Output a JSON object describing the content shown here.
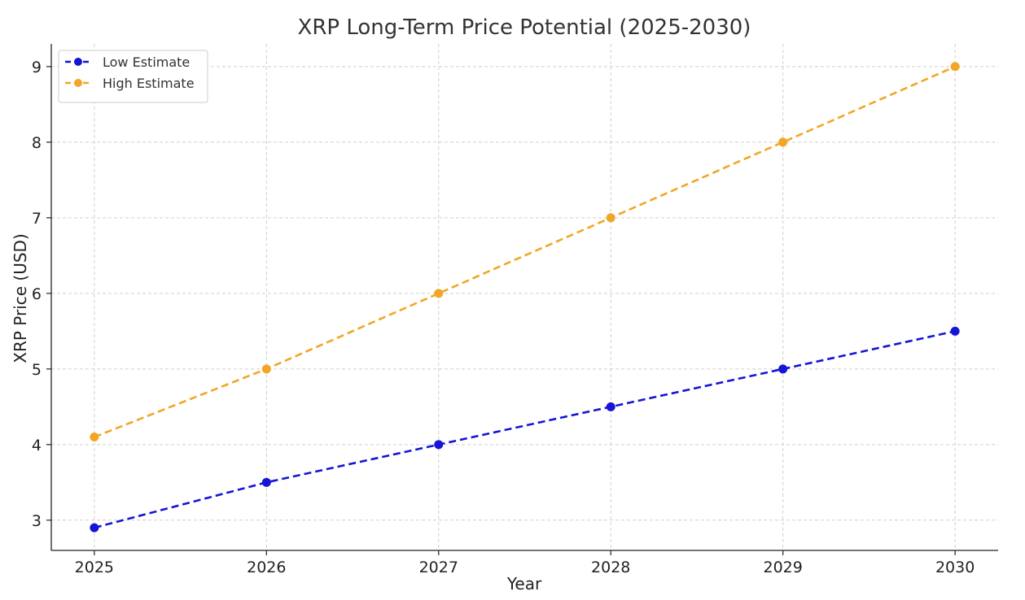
{
  "chart_data": {
    "type": "line",
    "title": "XRP Long-Term Price Potential (2025-2030)",
    "xlabel": "Year",
    "ylabel": "XRP Price (USD)",
    "x": [
      2025,
      2026,
      2027,
      2028,
      2029,
      2030
    ],
    "xticks": [
      "2025",
      "2026",
      "2027",
      "2028",
      "2029",
      "2030"
    ],
    "yticks": [
      "3",
      "4",
      "5",
      "6",
      "7",
      "8",
      "9"
    ],
    "ytick_values": [
      3,
      4,
      5,
      6,
      7,
      8,
      9
    ],
    "ylim": [
      2.6,
      9.3
    ],
    "xlim": [
      2024.75,
      2030.25
    ],
    "grid": true,
    "legend": "top-left",
    "series": [
      {
        "name": "Low Estimate",
        "color": "#1515d6",
        "values": [
          2.9,
          3.5,
          4.0,
          4.5,
          5.0,
          5.5
        ]
      },
      {
        "name": "High Estimate",
        "color": "#f2a626",
        "values": [
          4.1,
          5.0,
          6.0,
          7.0,
          8.0,
          9.0
        ]
      }
    ]
  }
}
